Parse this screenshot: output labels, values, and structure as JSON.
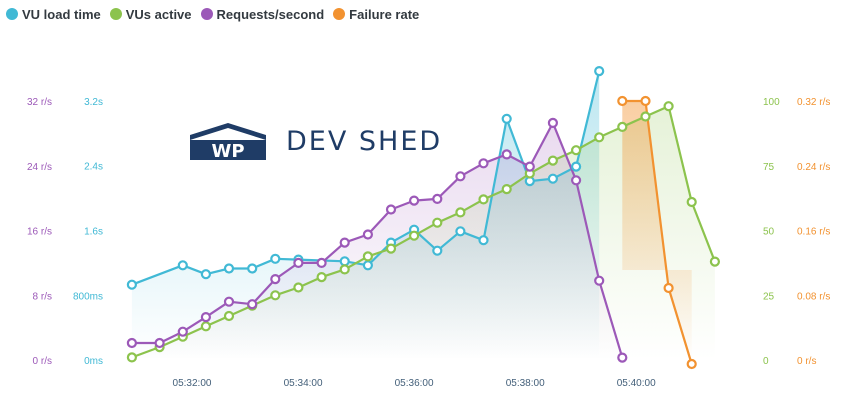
{
  "legend": [
    {
      "name": "VU load time",
      "color": "#41b9d5"
    },
    {
      "name": "VUs active",
      "color": "#8cc34d"
    },
    {
      "name": "Requests/second",
      "color": "#9c59b8"
    },
    {
      "name": "Failure rate",
      "color": "#f29230"
    }
  ],
  "logo": {
    "mark": "WP",
    "text": "DEV SHED"
  },
  "chart_data": {
    "type": "line",
    "grid": false,
    "legend_position": "top-left",
    "x": [
      "05:30:55",
      "05:31:25",
      "05:31:50",
      "05:32:15",
      "05:32:40",
      "05:33:05",
      "05:33:30",
      "05:33:55",
      "05:34:20",
      "05:34:45",
      "05:35:10",
      "05:35:35",
      "05:36:00",
      "05:36:25",
      "05:36:50",
      "05:37:15",
      "05:37:40",
      "05:38:05",
      "05:38:30",
      "05:38:55",
      "05:39:20",
      "05:39:45",
      "05:40:10",
      "05:40:35",
      "05:41:00",
      "05:41:25",
      "05:41:40",
      "05:41:50"
    ],
    "x_ticks": [
      "05:32:00",
      "05:34:00",
      "05:36:00",
      "05:38:00",
      "05:40:00"
    ],
    "axes": {
      "load_time": {
        "ticks": [
          "0ms",
          "800ms",
          "1.6s",
          "2.4s",
          "3.2s"
        ],
        "range": [
          0,
          3.2
        ],
        "unit": "s",
        "color": "#41b9d5"
      },
      "requests": {
        "ticks": [
          "0 r/s",
          "8 r/s",
          "16 r/s",
          "24 r/s",
          "32 r/s"
        ],
        "range": [
          0,
          32
        ],
        "color": "#9c59b8"
      },
      "vus": {
        "ticks": [
          "0",
          "25",
          "50",
          "75",
          "100"
        ],
        "range": [
          0,
          100
        ],
        "color": "#8cc34d"
      },
      "failure": {
        "ticks": [
          "0 r/s",
          "0.08 r/s",
          "0.16 r/s",
          "0.24 r/s",
          "0.32 r/s"
        ],
        "range": [
          0,
          0.32
        ],
        "color": "#f29230"
      }
    },
    "series": [
      {
        "name": "VU load time",
        "axis": "load_time",
        "color": "#41b9d5",
        "values": [
          0.93,
          null,
          1.17,
          1.06,
          1.13,
          1.13,
          1.25,
          1.24,
          null,
          1.22,
          1.17,
          1.45,
          1.61,
          1.35,
          1.59,
          1.48,
          2.98,
          2.21,
          2.24,
          2.39,
          3.57,
          null,
          null,
          null,
          null,
          null,
          null,
          null
        ]
      },
      {
        "name": "VUs active",
        "axis": "vus",
        "color": "#8cc34d",
        "values": [
          1,
          5,
          9,
          13,
          17,
          21,
          25,
          28,
          32,
          35,
          40,
          43,
          48,
          53,
          57,
          62,
          66,
          72,
          77,
          81,
          86,
          90,
          94,
          98,
          61,
          38,
          null,
          null
        ]
      },
      {
        "name": "Requests/second",
        "axis": "requests",
        "color": "#9c59b8",
        "values": [
          2.1,
          2.1,
          3.5,
          5.3,
          7.2,
          6.9,
          10,
          12,
          12,
          14.5,
          15.5,
          18.6,
          19.7,
          19.9,
          22.7,
          24.3,
          25.4,
          23.9,
          29.3,
          22.2,
          9.8,
          0.3,
          null,
          null,
          null,
          null,
          null,
          null
        ]
      },
      {
        "name": "Failure rate",
        "axis": "failure",
        "color": "#f29230",
        "values": [
          null,
          null,
          null,
          null,
          null,
          null,
          null,
          null,
          null,
          null,
          null,
          null,
          null,
          null,
          null,
          null,
          null,
          null,
          null,
          null,
          null,
          0.32,
          0.32,
          0.089,
          -0.005,
          null,
          null,
          null
        ]
      }
    ]
  }
}
